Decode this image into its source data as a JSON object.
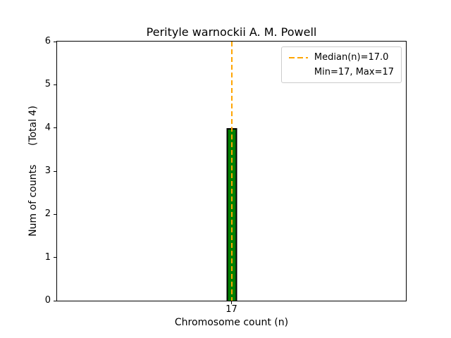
{
  "chart_data": {
    "type": "bar",
    "title": "Perityle warnockii A. M. Powell",
    "xlabel": "Chromosome count (n)",
    "ylabel": "Num of counts      (Total 4)",
    "categories": [
      "17"
    ],
    "values": [
      4
    ],
    "ylim": [
      0,
      6
    ],
    "yticks": [
      0,
      1,
      2,
      3,
      4,
      5,
      6
    ],
    "grid": false,
    "background": "#ffffff",
    "bar_color": "#008000",
    "bar_edge_color": "#000000",
    "median_line": {
      "value": 17.0,
      "orientation": "vertical",
      "style": "dashed",
      "color": "#FFA500"
    },
    "legend": {
      "position": "upper right",
      "entries": [
        {
          "label": "Median(n)=17.0",
          "symbol": "dashed-line",
          "color": "#FFA500"
        },
        {
          "label": "Min=17, Max=17",
          "symbol": "none",
          "color": ""
        }
      ]
    }
  }
}
